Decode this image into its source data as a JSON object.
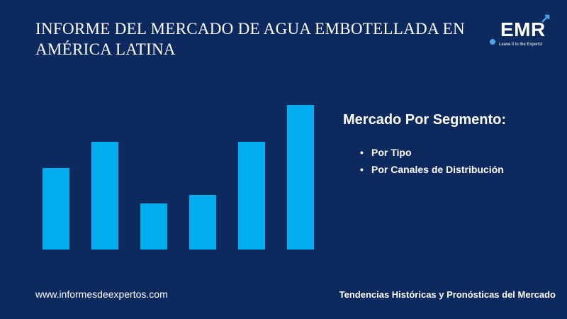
{
  "header": {
    "title": "INFORME DEL MERCADO DE AGUA EMBOTELLADA EN AMÉRICA LATINA"
  },
  "logo": {
    "name": "EMR",
    "tagline": "Leave it to the Experts!"
  },
  "segments": {
    "heading": "Mercado Por Segmento:",
    "items": [
      "Por Tipo",
      "Por Canales de Distribución"
    ]
  },
  "footer": {
    "website": "www.informesdeexpertos.com",
    "tagline": "Tendencias Históricas y Pronósticas del Mercado"
  },
  "chart_data": {
    "type": "bar",
    "categories": [
      "",
      "",
      "",
      "",
      "",
      ""
    ],
    "values": [
      115,
      152,
      65,
      77,
      152,
      204
    ],
    "ylim": [
      0,
      204
    ],
    "axes_visible": false,
    "grid": false,
    "bar_color": "#00aeef"
  },
  "colors": {
    "background": "#0d2a5e",
    "bar": "#00aeef",
    "text": "#ffffff",
    "logo_accent": "#4aa8e8"
  }
}
